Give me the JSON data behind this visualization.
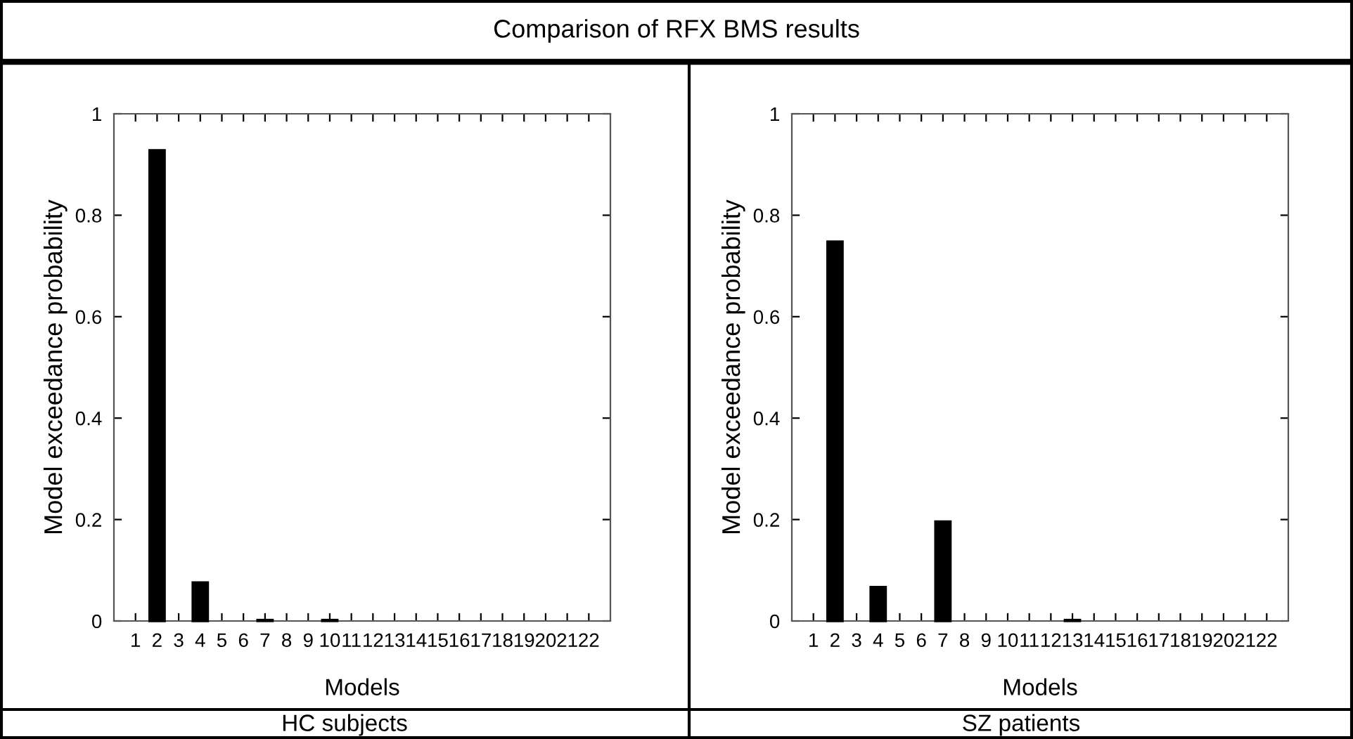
{
  "chart_data": [
    {
      "type": "bar",
      "title": "Comparison of RFX BMS results",
      "xlabel": "Models",
      "ylabel": "Model exceedance probability",
      "annotations": [
        "HC subjects"
      ],
      "categories": [
        "1",
        "2",
        "3",
        "4",
        "5",
        "6",
        "7",
        "8",
        "9",
        "10",
        "11",
        "12",
        "13",
        "14",
        "15",
        "16",
        "17",
        "18",
        "19",
        "20",
        "21",
        "22"
      ],
      "values": [
        0,
        0.928,
        0,
        0.076,
        0,
        0,
        0.002,
        0,
        0,
        0.002,
        0,
        0,
        0,
        0,
        0,
        0,
        0,
        0,
        0,
        0,
        0,
        0
      ],
      "color": "#000000",
      "ylim": [
        0,
        1
      ],
      "yticks": [
        0,
        0.2,
        0.4,
        0.6,
        0.8,
        1
      ],
      "grid": false,
      "legend": false
    },
    {
      "type": "bar",
      "xlabel": "Models",
      "ylabel": "Model exceedance probability",
      "annotations": [
        "SZ patients"
      ],
      "categories": [
        "1",
        "2",
        "3",
        "4",
        "5",
        "6",
        "7",
        "8",
        "9",
        "10",
        "11",
        "12",
        "13",
        "14",
        "15",
        "16",
        "17",
        "18",
        "19",
        "20",
        "21",
        "22"
      ],
      "values": [
        0,
        0.748,
        0,
        0.067,
        0,
        0,
        0.196,
        0,
        0,
        0,
        0,
        0,
        0.002,
        0,
        0,
        0,
        0,
        0,
        0,
        0,
        0,
        0
      ],
      "color": "#000000",
      "ylim": [
        0,
        1
      ],
      "yticks": [
        0,
        0.2,
        0.4,
        0.6,
        0.8,
        1
      ],
      "grid": false,
      "legend": false
    }
  ]
}
